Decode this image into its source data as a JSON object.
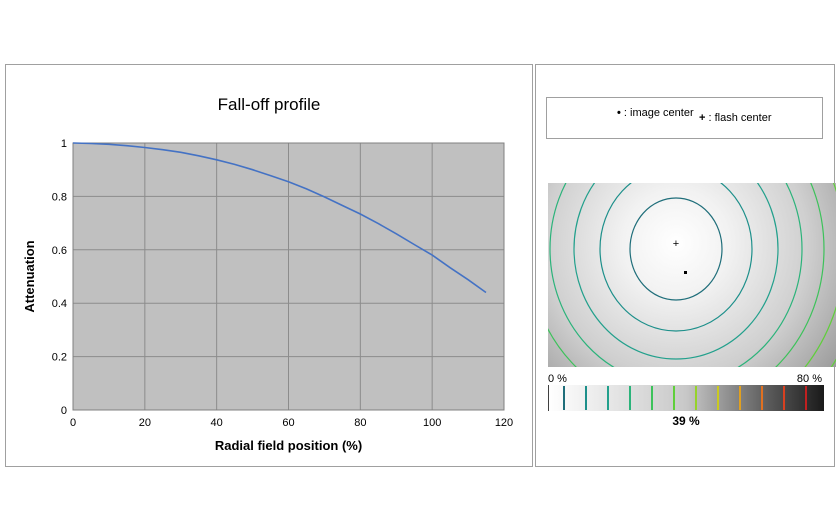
{
  "chart_data": [
    {
      "type": "line",
      "title": "Fall-off profile",
      "xlabel": "Radial field position (%)",
      "ylabel": "Attenuation",
      "xlim": [
        0,
        120
      ],
      "ylim": [
        0,
        1
      ],
      "xticks": [
        0,
        20,
        40,
        60,
        80,
        100,
        120
      ],
      "yticks": [
        0,
        0.2,
        0.4,
        0.6,
        0.8,
        1
      ],
      "grid": true,
      "series": [
        {
          "color": "#4472c4",
          "x": [
            0,
            5,
            10,
            15,
            20,
            25,
            30,
            35,
            40,
            45,
            50,
            55,
            60,
            65,
            70,
            75,
            80,
            85,
            90,
            95,
            100,
            105,
            110,
            115
          ],
          "y": [
            1.0,
            0.998,
            0.995,
            0.99,
            0.983,
            0.975,
            0.965,
            0.952,
            0.937,
            0.92,
            0.9,
            0.878,
            0.855,
            0.828,
            0.798,
            0.766,
            0.734,
            0.698,
            0.66,
            0.62,
            0.58,
            0.533,
            0.488,
            0.44
          ]
        }
      ]
    },
    {
      "type": "heatmap",
      "legend": {
        "image_center_symbol": "•",
        "image_center_label": ": image center",
        "flash_center_symbol": "+",
        "flash_center_label": ": flash center"
      },
      "scale_min_label": "0 %",
      "scale_max_label": "80 %",
      "center_value_label": "39 %",
      "contour_colors": [
        "#1f6e7a",
        "#1c8f8a",
        "#22a08c",
        "#2bb37a",
        "#3cc25a",
        "#5fcf3a",
        "#96d32a",
        "#c9c920",
        "#e0a020",
        "#e07020",
        "#d84020",
        "#c02020"
      ]
    }
  ]
}
